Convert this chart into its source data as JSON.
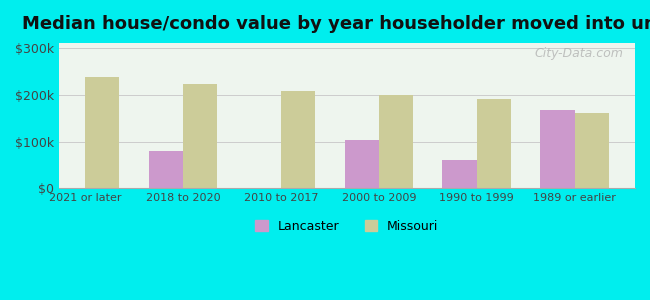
{
  "title": "Median house/condo value by year householder moved into unit",
  "categories": [
    "2021 or later",
    "2018 to 2020",
    "2010 to 2017",
    "2000 to 2009",
    "1990 to 1999",
    "1989 or earlier"
  ],
  "lancaster_values": [
    null,
    80000,
    null,
    103000,
    60000,
    168000
  ],
  "missouri_values": [
    238000,
    222000,
    208000,
    200000,
    190000,
    160000
  ],
  "lancaster_color": "#cc99cc",
  "missouri_color": "#cccc99",
  "background_color": "#00eeee",
  "plot_bg_color": "#eef5ee",
  "yticks": [
    0,
    100000,
    200000,
    300000
  ],
  "ylabels": [
    "$0",
    "$100k",
    "$200k",
    "$300k"
  ],
  "ylim": [
    0,
    310000
  ],
  "bar_width": 0.35,
  "watermark": "City-Data.com",
  "legend_lancaster": "Lancaster",
  "legend_missouri": "Missouri"
}
